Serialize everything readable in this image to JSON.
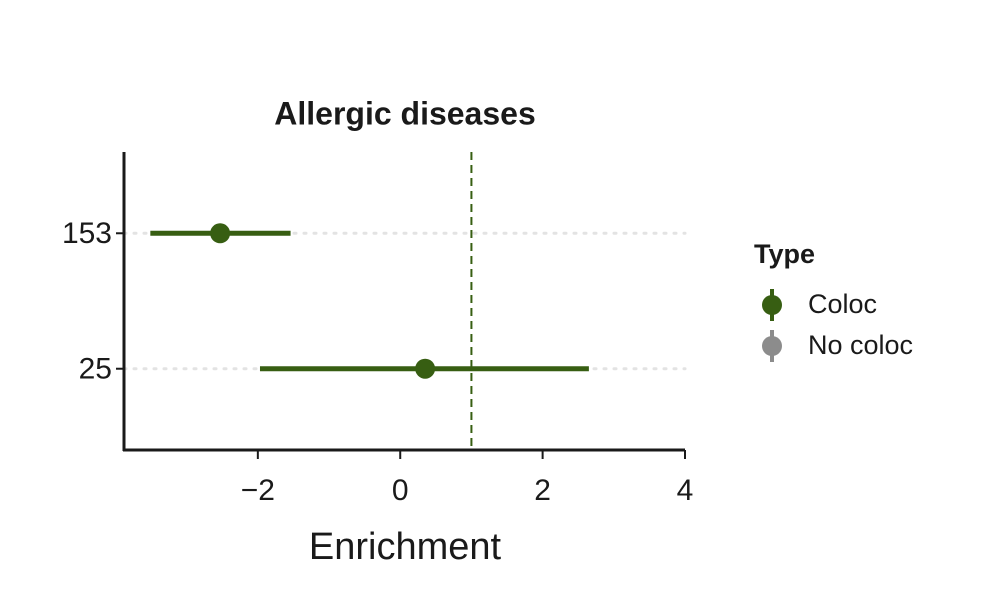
{
  "chart_data": {
    "type": "forest",
    "title": "Allergic diseases",
    "x_label": "Enrichment",
    "categories": [
      "153",
      "25"
    ],
    "series": [
      {
        "name": "Coloc",
        "color": "#375e12",
        "values": [
          -2.53,
          0.35
        ],
        "lower": [
          -3.51,
          -1.97
        ],
        "upper": [
          -1.54,
          2.65
        ]
      },
      {
        "name": "No coloc",
        "color": "#8c8c8c",
        "values": [
          null,
          null
        ],
        "lower": [
          null,
          null
        ],
        "upper": [
          null,
          null
        ]
      }
    ],
    "reference_line": 1,
    "xlim": [
      -3.88,
      4
    ],
    "xticks": [
      {
        "value": -2,
        "label": "−2"
      },
      0,
      2,
      4
    ],
    "grid": true,
    "legend": {
      "title": "Type",
      "position": "right"
    }
  }
}
